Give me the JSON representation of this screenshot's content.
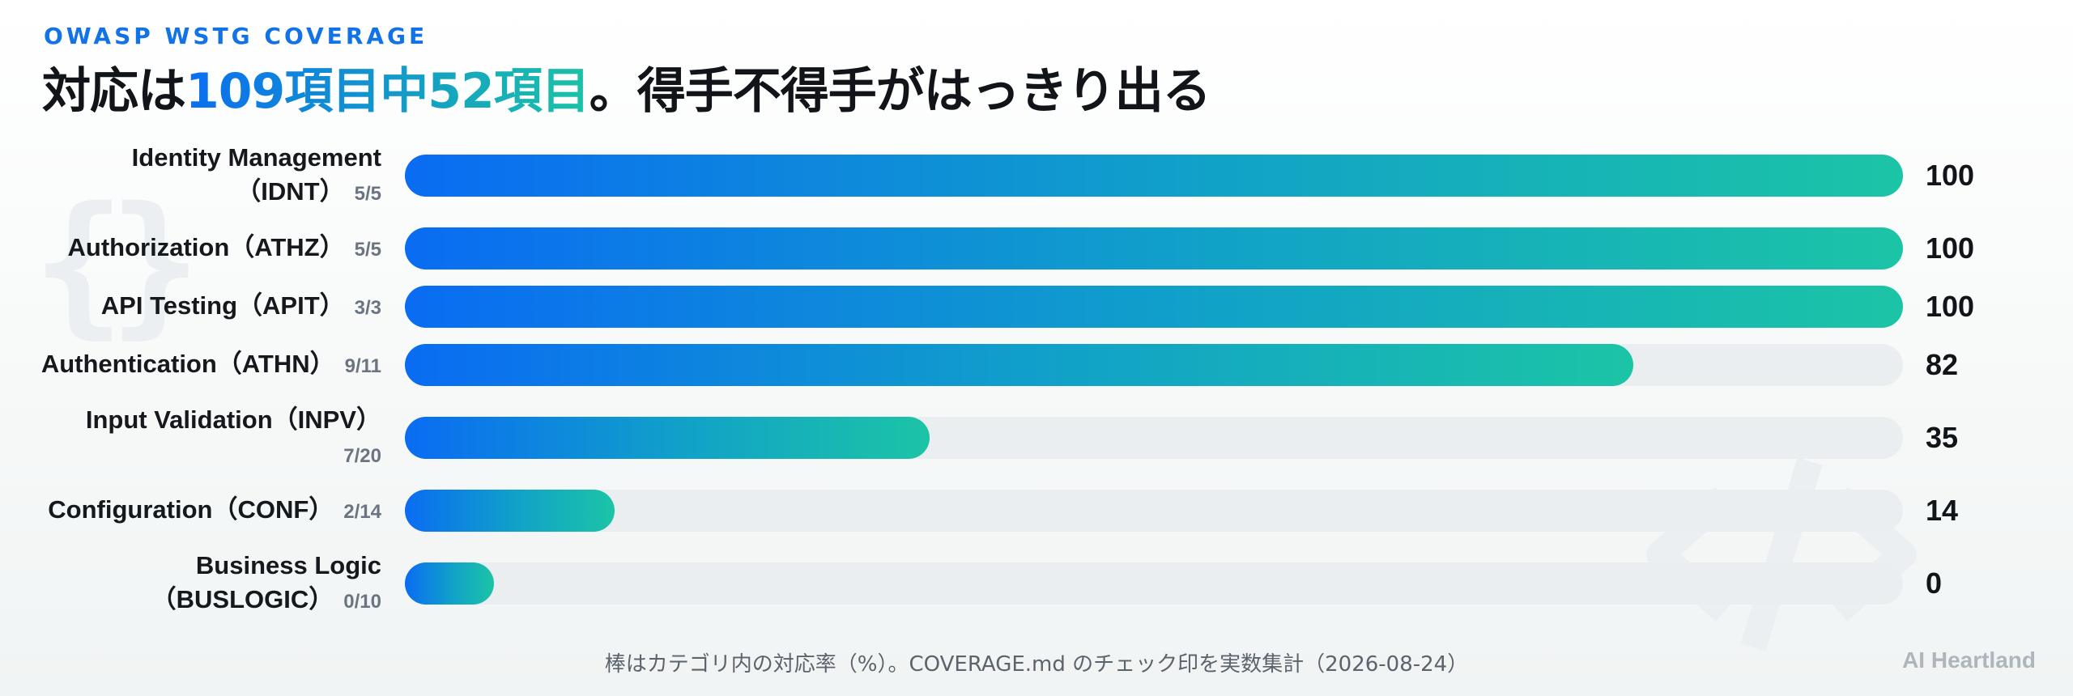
{
  "eyebrow": "OWASP WSTG COVERAGE",
  "headline": {
    "prefix": "対応は",
    "highlight": "109項目中52項目",
    "suffix": "。得手不得手がはっきり出る"
  },
  "chart_data": {
    "type": "bar",
    "orientation": "horizontal",
    "xlim": [
      0,
      100
    ],
    "categories": [
      {
        "line1": "Identity Management",
        "line2": "（IDNT）",
        "count": "5/5",
        "value": 100
      },
      {
        "line1": "Authorization（ATHZ）",
        "line2": "",
        "count": "5/5",
        "value": 100
      },
      {
        "line1": "API Testing（APIT）",
        "line2": "",
        "count": "3/3",
        "value": 100
      },
      {
        "line1": "Authentication（ATHN）",
        "line2": "",
        "count": "9/11",
        "value": 82
      },
      {
        "line1": "Input Validation（INPV）",
        "line2": "",
        "count": "7/20",
        "value": 35,
        "count_on_new_line": true
      },
      {
        "line1": "Configuration（CONF）",
        "line2": "",
        "count": "2/14",
        "value": 14
      },
      {
        "line1": "Business Logic",
        "line2": "（BUSLOGIC）",
        "count": "0/10",
        "value": 0
      }
    ],
    "colors": {
      "bar_start": "#0a6cf2",
      "bar_end": "#1cc4a6",
      "track": "#ebeef0"
    },
    "grid": false,
    "legend": "none"
  },
  "footnote": "棒はカテゴリ内の対応率（%）。COVERAGE.md のチェック印を実数集計（2026-08-24）",
  "brand": "AI Heartland"
}
